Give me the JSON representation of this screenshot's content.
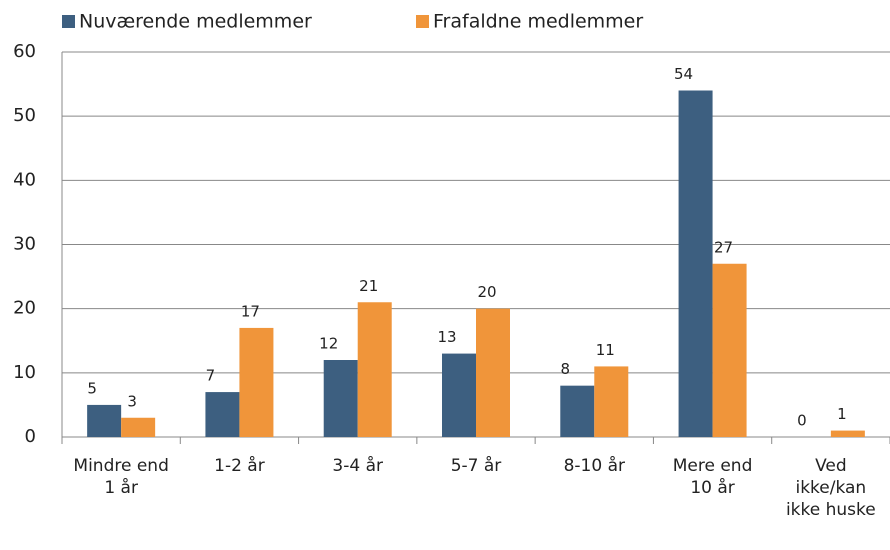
{
  "chart_data": {
    "type": "bar",
    "categories": [
      "Mindre end 1 år",
      "1-2 år",
      "3-4 år",
      "5-7 år",
      "8-10 år",
      "Mere end 10 år",
      "Ved ikke/kan ikke huske"
    ],
    "series": [
      {
        "name": "Nuværende medlemmer",
        "color": "#3d5f80",
        "values": [
          5,
          7,
          12,
          13,
          8,
          54,
          0
        ]
      },
      {
        "name": "Frafaldne medlemmer",
        "color": "#f0953a",
        "values": [
          3,
          17,
          21,
          20,
          11,
          27,
          1
        ]
      }
    ],
    "ylim": [
      0,
      60
    ],
    "yticks": [
      0,
      10,
      20,
      30,
      40,
      50,
      60
    ],
    "grid": true,
    "legend": "top"
  }
}
